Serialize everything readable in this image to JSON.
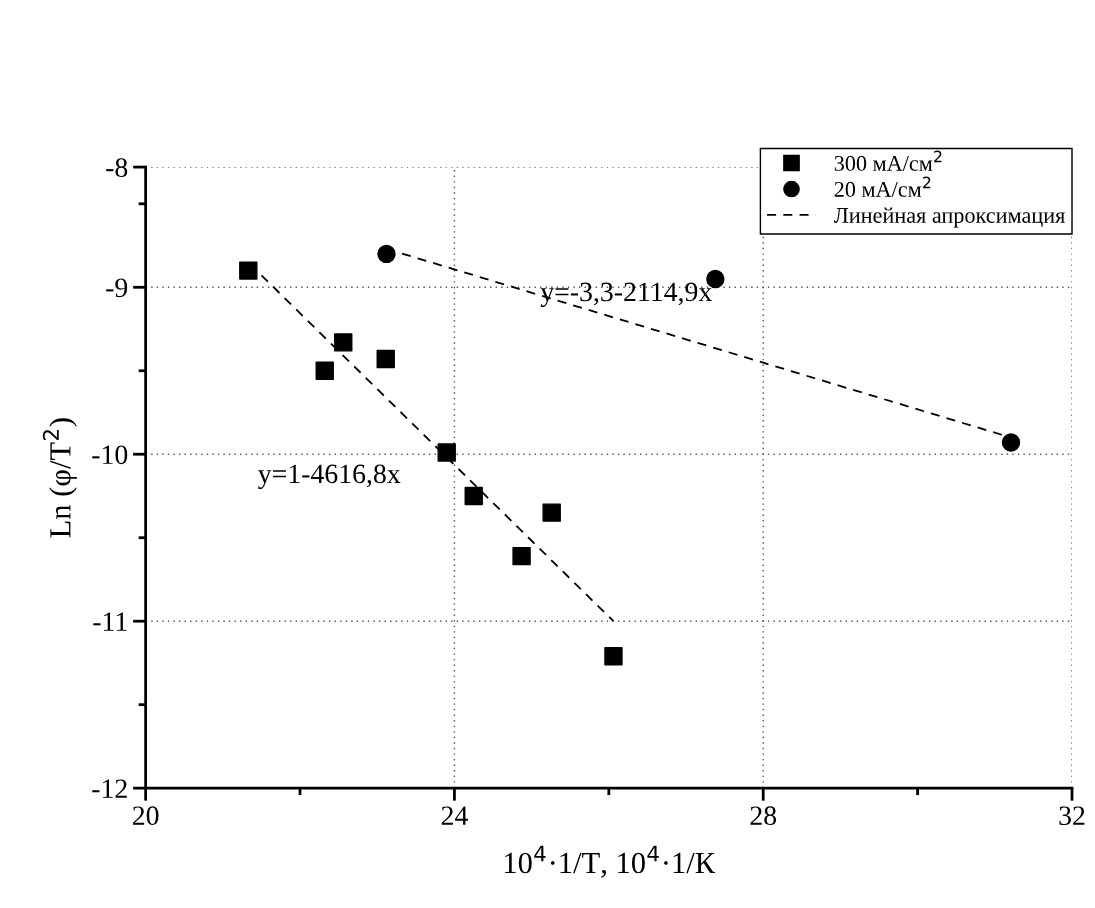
{
  "chart_data": {
    "type": "scatter",
    "xlabel": "10$^{4}$·1/T, 10$^{4}$·1/К",
    "ylabel": "Ln (φ/T$^{2}$)",
    "xlim": [
      20,
      32
    ],
    "xticks": [
      20,
      {
        "value": 22,
        "label": null
      },
      24,
      {
        "value": 26,
        "label": null
      },
      28,
      {
        "value": 30,
        "label": null
      },
      32
    ],
    "ylim": [
      -12,
      -8.28
    ],
    "yticks": [
      -12,
      {
        "value": -11.5,
        "label": null
      },
      -11,
      {
        "value": -10.5,
        "label": null
      },
      -10,
      {
        "value": -9.5,
        "label": null
      },
      -9,
      {
        "value": -8.5,
        "label": null
      },
      {
        "value": -8.28,
        "label": "-8"
      }
    ],
    "grid": true,
    "legend": "top right",
    "series": [
      {
        "name": "300 мА/см$^{2}$",
        "color": "#000000",
        "marker": "square",
        "x": [
          21.33,
          22.32,
          22.56,
          23.11,
          23.9,
          24.25,
          25.26,
          24.87,
          26.06
        ],
        "values": [
          -8.9,
          -9.5,
          -9.33,
          -9.43,
          -9.99,
          -10.25,
          -10.35,
          -10.61,
          -11.21
        ]
      },
      {
        "name": "20 мА/см$^{2}$",
        "color": "#000000",
        "marker": "circle",
        "x": [
          23.12,
          27.38,
          31.21
        ],
        "values": [
          -8.8,
          -8.95,
          -9.93
        ]
      },
      {
        "name": "Линейная апроксимация",
        "type": "line",
        "color": "#000000",
        "marker": "none",
        "line_style": "dashed",
        "x": [
          21.35,
          26.06,
          null,
          23.12,
          31.21
        ],
        "values": [
          -8.86,
          -11.0,
          null,
          -8.77,
          -9.9
        ]
      }
    ],
    "annotations": [
      "y=1-4616,8x",
      "y=-3,3-2114,9x"
    ]
  }
}
